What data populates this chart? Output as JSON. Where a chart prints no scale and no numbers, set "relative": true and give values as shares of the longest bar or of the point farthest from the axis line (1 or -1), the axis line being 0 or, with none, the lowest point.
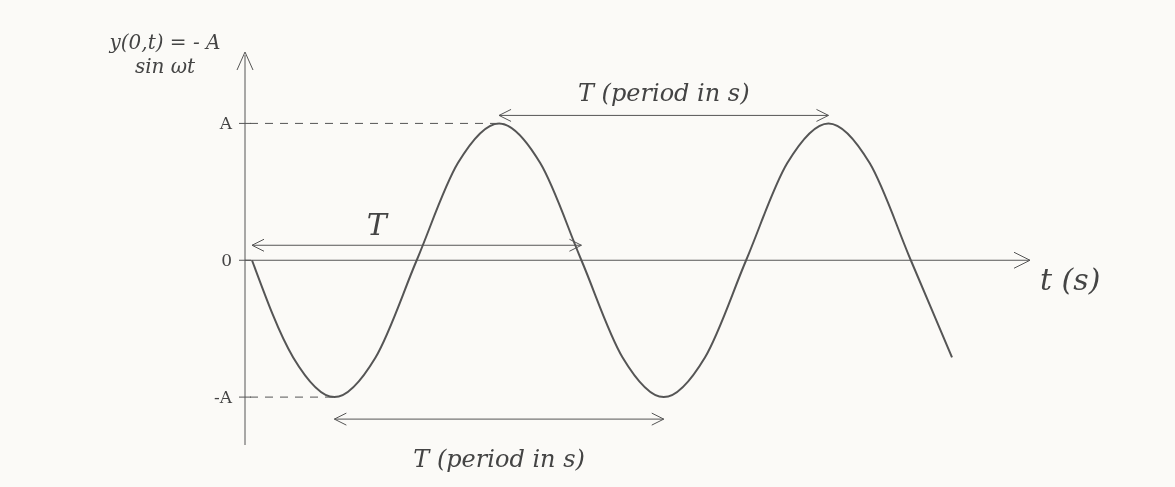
{
  "chart_data": {
    "type": "line",
    "ylabel": "y(0,t) = - A sin ωt",
    "xlabel": "t (s)",
    "categories": [
      null,
      null,
      null,
      null,
      null,
      null,
      null,
      null,
      null,
      null,
      null,
      null,
      null,
      null,
      null,
      null,
      null,
      null
    ],
    "series": [
      {
        "color": "#555555",
        "values": [
          0,
          -0.71,
          -1,
          -0.71,
          0,
          0.71,
          1,
          0.71,
          0,
          -0.71,
          -1,
          -0.71,
          0,
          0.71,
          1,
          0.71,
          0,
          -0.71
        ]
      }
    ],
    "relative": true,
    "marker": "none",
    "line_style": "solid",
    "annotations": [
      "T (period in s)",
      "T",
      "T (period in s)",
      "A",
      "0",
      "-A"
    ]
  }
}
